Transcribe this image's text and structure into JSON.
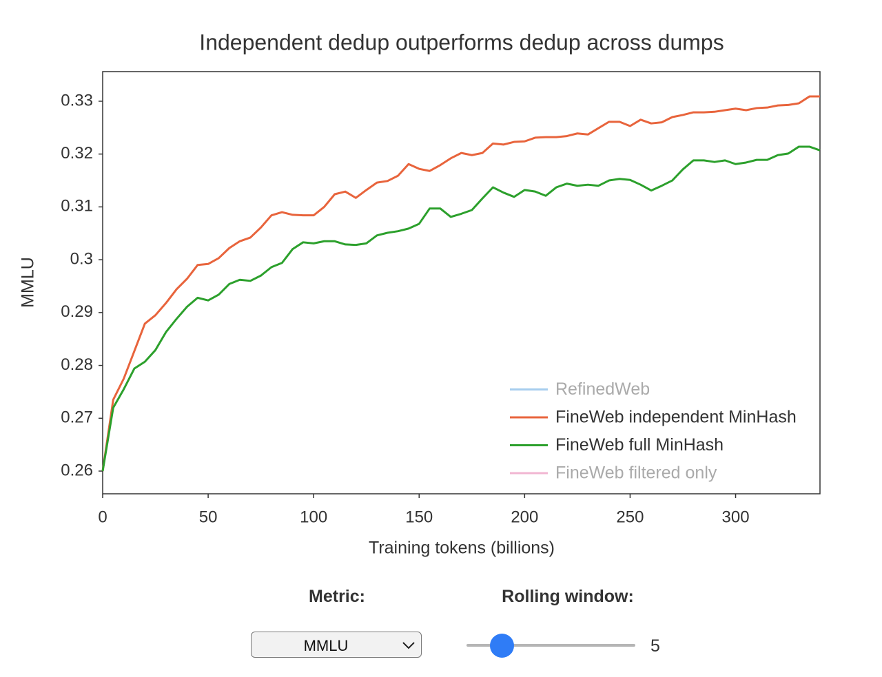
{
  "chart_data": {
    "type": "line",
    "title": "Independent dedup outperforms dedup across dumps",
    "x_label": "Training tokens (billions)",
    "y_label": "MMLU",
    "x": [
      0,
      5,
      10,
      15,
      20,
      25,
      30,
      35,
      40,
      45,
      50,
      55,
      60,
      65,
      70,
      75,
      80,
      85,
      90,
      95,
      100,
      105,
      110,
      115,
      120,
      125,
      130,
      135,
      140,
      145,
      150,
      155,
      160,
      165,
      170,
      175,
      180,
      185,
      190,
      195,
      200,
      205,
      210,
      215,
      220,
      225,
      230,
      235,
      240,
      245,
      250,
      255,
      260,
      265,
      270,
      275,
      280,
      285,
      290,
      295,
      300,
      305,
      310,
      315,
      320,
      325,
      330,
      335,
      340
    ],
    "series": [
      {
        "name": "RefinedWeb",
        "color": "#a6cdee",
        "visible": false
      },
      {
        "name": "FineWeb independent MinHash",
        "color": "#e8643c",
        "visible": true,
        "values": [
          0.26,
          0.2735,
          0.2775,
          0.2827,
          0.2879,
          0.2895,
          0.2918,
          0.2944,
          0.2964,
          0.299,
          0.2992,
          0.3003,
          0.3022,
          0.3035,
          0.3042,
          0.3061,
          0.3084,
          0.309,
          0.3085,
          0.3084,
          0.3084,
          0.31,
          0.3124,
          0.3129,
          0.3117,
          0.3132,
          0.3146,
          0.3149,
          0.3159,
          0.3181,
          0.3172,
          0.3168,
          0.3179,
          0.3192,
          0.3202,
          0.3198,
          0.3202,
          0.322,
          0.3218,
          0.3223,
          0.3224,
          0.3231,
          0.3232,
          0.3232,
          0.3234,
          0.3239,
          0.3237,
          0.3249,
          0.3261,
          0.3261,
          0.3253,
          0.3265,
          0.3258,
          0.326,
          0.327,
          0.3274,
          0.3279,
          0.3279,
          0.328,
          0.3283,
          0.3286,
          0.3283,
          0.3287,
          0.3288,
          0.3292,
          0.3293,
          0.3296,
          0.3309,
          0.3309
        ]
      },
      {
        "name": "FineWeb full MinHash",
        "color": "#2ca02c",
        "visible": true,
        "values": [
          0.26,
          0.272,
          0.2755,
          0.2794,
          0.2807,
          0.2829,
          0.2863,
          0.2888,
          0.2911,
          0.2928,
          0.2923,
          0.2934,
          0.2954,
          0.2962,
          0.296,
          0.297,
          0.2986,
          0.2994,
          0.302,
          0.3033,
          0.3031,
          0.3035,
          0.3035,
          0.3029,
          0.3028,
          0.3031,
          0.3046,
          0.3051,
          0.3054,
          0.3059,
          0.3068,
          0.3097,
          0.3097,
          0.3081,
          0.3087,
          0.3094,
          0.3116,
          0.3137,
          0.3127,
          0.3119,
          0.3132,
          0.3129,
          0.3121,
          0.3137,
          0.3144,
          0.314,
          0.3142,
          0.314,
          0.315,
          0.3153,
          0.3151,
          0.3142,
          0.3131,
          0.314,
          0.315,
          0.3171,
          0.3188,
          0.3188,
          0.3185,
          0.3188,
          0.3181,
          0.3184,
          0.3189,
          0.3189,
          0.3198,
          0.3201,
          0.3214,
          0.3214,
          0.3207
        ]
      },
      {
        "name": "FineWeb filtered only",
        "color": "#f1b6d2",
        "visible": false
      }
    ],
    "xlim": [
      0,
      340
    ],
    "ylim": [
      0.2557,
      0.3356
    ],
    "xticks": [
      0,
      50,
      100,
      150,
      200,
      250,
      300
    ],
    "yticks": [
      0.26,
      0.27,
      0.28,
      0.29,
      0.3,
      0.31,
      0.32,
      0.33
    ],
    "legend": "lower right"
  },
  "controls": {
    "metric_label": "Metric:",
    "metric_value": "MMLU",
    "window_label": "Rolling window:",
    "window_value": 5
  }
}
